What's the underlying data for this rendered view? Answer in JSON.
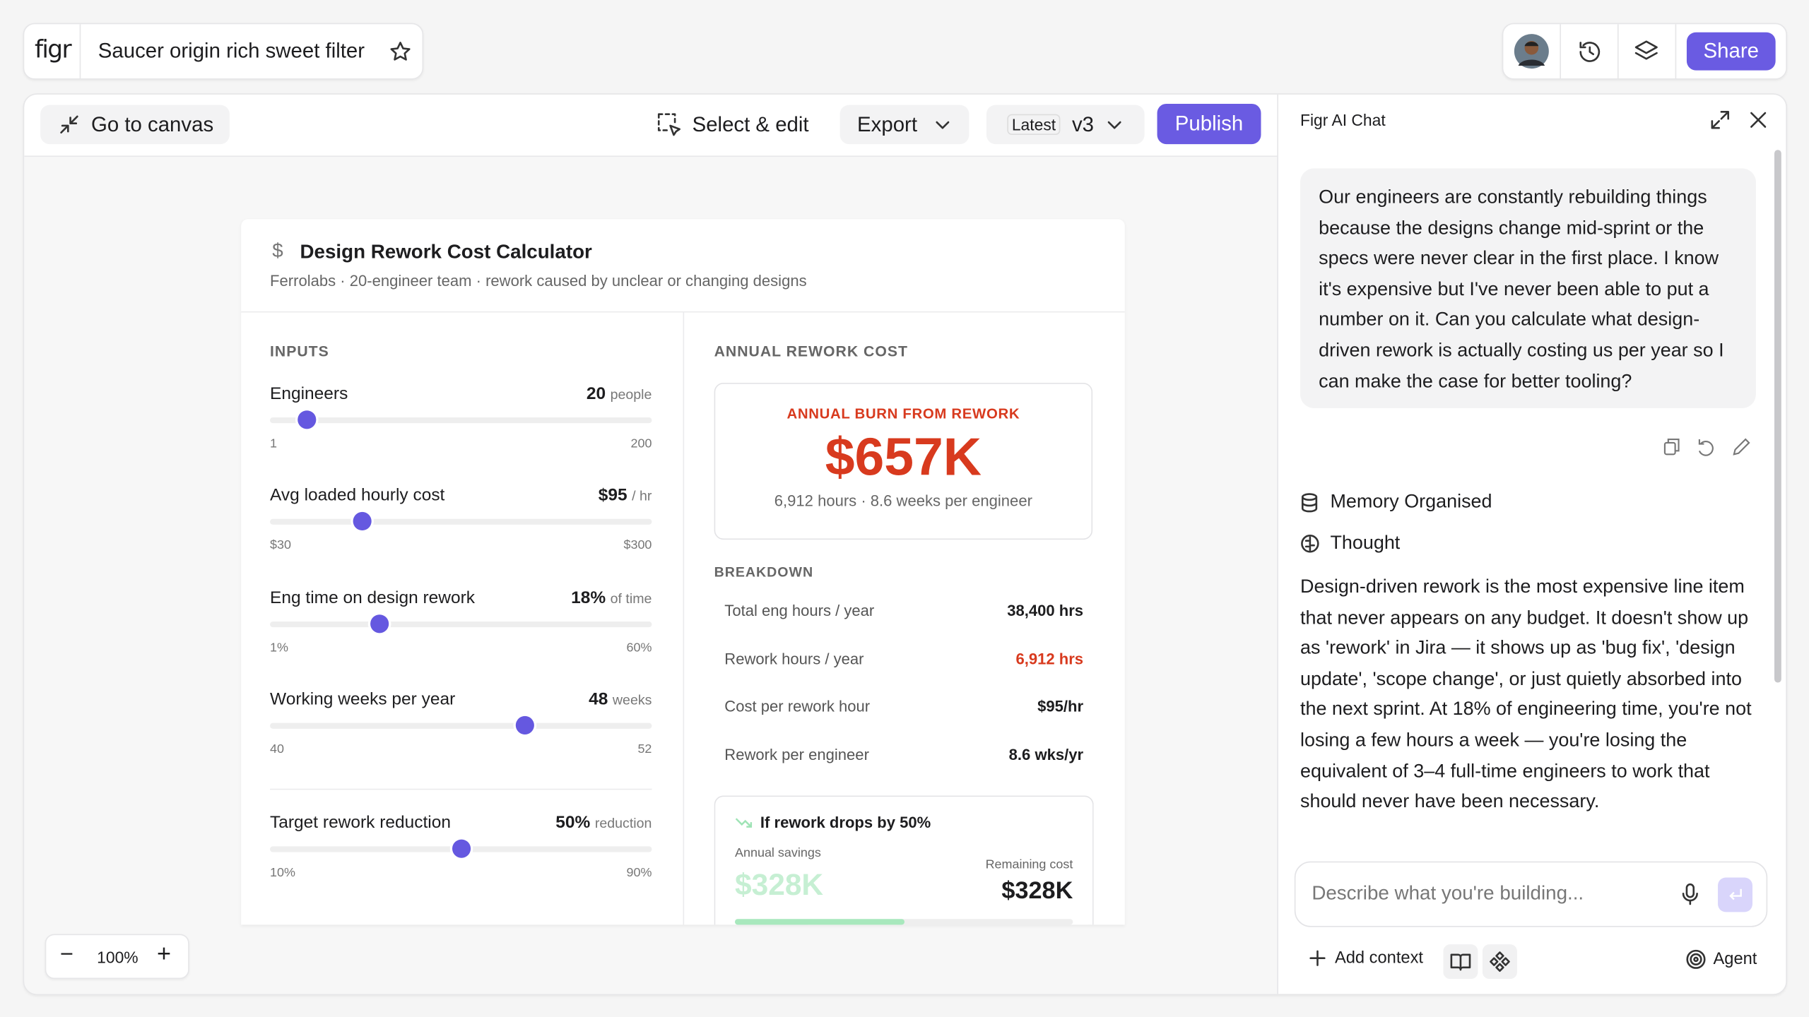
{
  "header": {
    "logo": "figr",
    "file_name": "Saucer origin rich sweet filter",
    "share": "Share"
  },
  "toolbar": {
    "go_to_canvas": "Go to canvas",
    "select_edit": "Select & edit",
    "export": "Export",
    "version_label": "Latest",
    "version": "v3",
    "publish": "Publish"
  },
  "calculator": {
    "title": "Design Rework Cost Calculator",
    "subtitle": "Ferrolabs · 20-engineer team · rework caused by unclear or changing designs",
    "inputs_heading": "INPUTS",
    "inputs": [
      {
        "label": "Engineers",
        "value": "20",
        "unit": "people",
        "min": "1",
        "max": "200"
      },
      {
        "label": "Avg loaded hourly cost",
        "value": "$95",
        "unit": "/ hr",
        "min": "$30",
        "max": "$300"
      },
      {
        "label": "Eng time on design rework",
        "value": "18%",
        "unit": "of time",
        "min": "1%",
        "max": "60%"
      },
      {
        "label": "Working weeks per year",
        "value": "48",
        "unit": "weeks",
        "min": "40",
        "max": "52"
      },
      {
        "label": "Target rework reduction",
        "value": "50%",
        "unit": "reduction",
        "min": "10%",
        "max": "90%"
      }
    ],
    "results_heading": "ANNUAL REWORK COST",
    "burn_label": "ANNUAL BURN FROM REWORK",
    "burn_value": "$657K",
    "burn_sub": "6,912 hours · 8.6 weeks per engineer",
    "breakdown_heading": "BREAKDOWN",
    "breakdown": [
      {
        "label": "Total eng hours / year",
        "value": "38,400 hrs"
      },
      {
        "label": "Rework hours / year",
        "value": "6,912 hrs"
      },
      {
        "label": "Cost per rework hour",
        "value": "$95/hr"
      },
      {
        "label": "Rework per engineer",
        "value": "8.6 wks/yr"
      }
    ],
    "scenario": {
      "title": "If rework drops by 50%",
      "savings_label": "Annual savings",
      "savings": "$328K",
      "remaining_label": "Remaining cost",
      "remaining": "$328K"
    }
  },
  "zoom": "100%",
  "chat": {
    "title": "Figr AI Chat",
    "user_message": "Our engineers are constantly rebuilding things because the designs change mid-sprint or the specs were never clear in the first place. I know it's expensive but I've never been able to put a number on it. Can you calculate what design-driven rework is actually costing us per year so I can make the case for better tooling?",
    "steps": [
      "Memory Organised",
      "Thought"
    ],
    "reply": "Design-driven rework is the most expensive line item that never appears on any budget. It doesn't show up as 'rework' in Jira — it shows up as 'bug fix', 'design update', 'scope change', or just quietly absorbed into the next sprint. At 18% of engineering time, you're not losing a few hours a week — you're losing the equivalent of 3–4 full-time engineers to work that should never have been necessary.",
    "placeholder": "Describe what you're building...",
    "add_context": "Add context",
    "agent": "Agent"
  }
}
